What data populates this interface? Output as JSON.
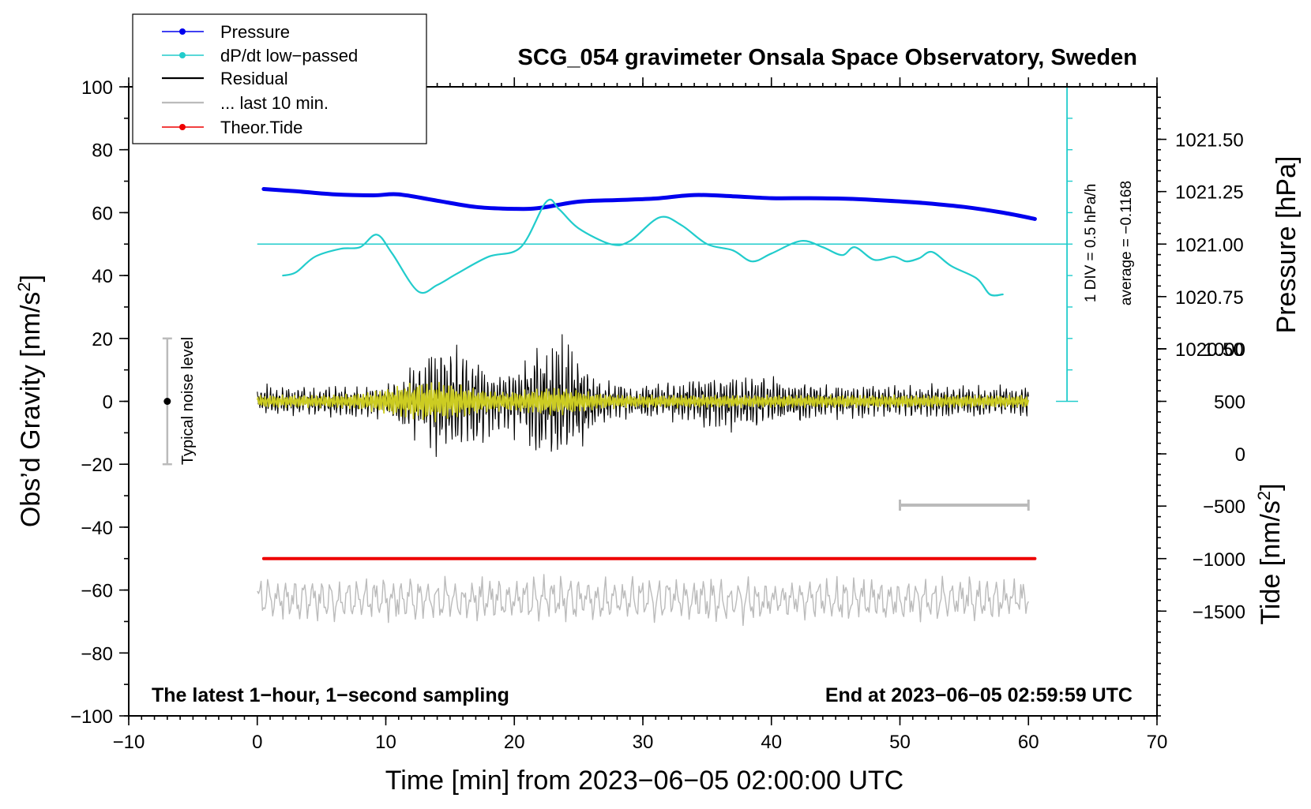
{
  "chart_data": {
    "type": "line",
    "title": "SCG_054 gravimeter Onsala Space Observatory, Sweden",
    "xlabel": "Time [min] from 2023−06−05 02:00:00 UTC",
    "ylabel": "Obs’d Gravity [nm/s",
    "ylabel_sup": "2",
    "ylabel_close": "]",
    "pressure_label": "Pressure [hPa]",
    "tide_label": "Tide [nm/s",
    "tide_label_sup": "2",
    "tide_label_close": "]",
    "xlim": [
      -10,
      70
    ],
    "ylim": [
      -100,
      100
    ],
    "x_ticks": [
      "−10",
      "0",
      "10",
      "20",
      "30",
      "40",
      "50",
      "60",
      "70"
    ],
    "x_tick_values": [
      -10,
      0,
      10,
      20,
      30,
      40,
      50,
      60,
      70
    ],
    "y_ticks": [
      "100",
      "80",
      "60",
      "40",
      "20",
      "0",
      "−20",
      "−40",
      "−60",
      "−80",
      "−100"
    ],
    "y_tick_values": [
      100,
      80,
      60,
      40,
      20,
      0,
      -20,
      -40,
      -60,
      -80,
      -100
    ],
    "pressure_ticks": [
      "1021.50",
      "1021.25",
      "1021.00",
      "1020.75",
      "1020.50"
    ],
    "pressure_tick_values": [
      1021.5,
      1021.25,
      1021.0,
      1020.75,
      1020.5
    ],
    "pressure_gravity_equiv": [
      83.3,
      66.7,
      50.0,
      33.3,
      16.7
    ],
    "tide_ticks": [
      "1000",
      "500",
      "0",
      "−500",
      "−1000",
      "−1500"
    ],
    "tide_tick_values": [
      1000,
      500,
      0,
      -500,
      -1000,
      -1500
    ],
    "tide_gravity_equiv": [
      16.7,
      0,
      -16.7,
      -33.3,
      -50,
      -66.7
    ],
    "legend": {
      "position": "top-left",
      "items": [
        {
          "label": "Pressure",
          "color": "#0000ee",
          "marker": true
        },
        {
          "label": "dP/dt low−passed",
          "color": "#22cccc",
          "marker": true
        },
        {
          "label": "Residual",
          "color": "#000000",
          "marker": false
        },
        {
          "label": "... last 10 min.",
          "color": "#bbbbbb",
          "marker": false
        },
        {
          "label": "Theor.Tide",
          "color": "#ee0000",
          "marker": true
        }
      ]
    },
    "annotations": {
      "bottom_left": "The latest 1−hour, 1−second sampling",
      "bottom_right": "End at 2023−06−05 02:59:59 UTC",
      "noise": "Typical noise level",
      "div": "1 DIV = 0.5 hPa/h",
      "average": "average = −0.1168"
    },
    "noise_bar": {
      "x": -7,
      "y_range": [
        -20,
        20
      ]
    },
    "dpdt_scale_bar": {
      "x": 63,
      "y_range": [
        0,
        100
      ],
      "divisions": 10
    },
    "last10_bar": {
      "x_range": [
        50,
        60
      ],
      "y": -33
    },
    "series": [
      {
        "name": "Pressure",
        "color": "#0000ee",
        "x": [
          0.5,
          3,
          6,
          9,
          11,
          14,
          17,
          20,
          22,
          25,
          28,
          31,
          34,
          37,
          40,
          43,
          46,
          49,
          52,
          55,
          58,
          60.5
        ],
        "y": [
          67.5,
          66.8,
          65.8,
          65.5,
          65.8,
          63.8,
          61.8,
          61.2,
          61.5,
          63.5,
          64.0,
          64.5,
          65.6,
          65.2,
          64.6,
          64.6,
          64.4,
          63.8,
          63.0,
          61.8,
          60.0,
          58.0
        ]
      },
      {
        "name": "dP/dt low-passed",
        "color": "#22cccc",
        "x": [
          2,
          3,
          4.5,
          6.5,
          8,
          9.3,
          10.5,
          12.5,
          14,
          15.5,
          18,
          20.5,
          22.5,
          23.5,
          25,
          27.5,
          29,
          31.3,
          33,
          35,
          37,
          38.5,
          40,
          42.3,
          44,
          45.5,
          46.5,
          48,
          49.5,
          50.5,
          51.5,
          52.5,
          54,
          56,
          57,
          58
        ],
        "y": [
          40,
          41,
          46,
          48.5,
          49,
          53,
          47,
          35,
          37,
          40.5,
          46,
          49,
          63.5,
          61,
          55,
          50,
          51,
          58.5,
          56,
          50,
          48,
          44.5,
          47,
          51,
          49,
          46.5,
          49,
          45,
          46,
          44.5,
          45.5,
          47.5,
          43,
          39,
          34,
          34
        ]
      },
      {
        "name": "Theor.Tide",
        "color": "#ee0000",
        "x": [
          0.5,
          60.5
        ],
        "y": [
          -50,
          -50
        ]
      },
      {
        "name": "Residual",
        "color": "#000000",
        "x_range": [
          0,
          60
        ],
        "center": 0,
        "max_amplitude": 22
      },
      {
        "name": "Residual (filtered)",
        "color": "#cccc22",
        "x_range": [
          0,
          60
        ],
        "center": 0,
        "max_amplitude": 7
      },
      {
        "name": "... last 10 min.",
        "color": "#bbbbbb",
        "x_range": [
          0,
          60
        ],
        "center": -63,
        "max_amplitude": 5
      }
    ]
  }
}
